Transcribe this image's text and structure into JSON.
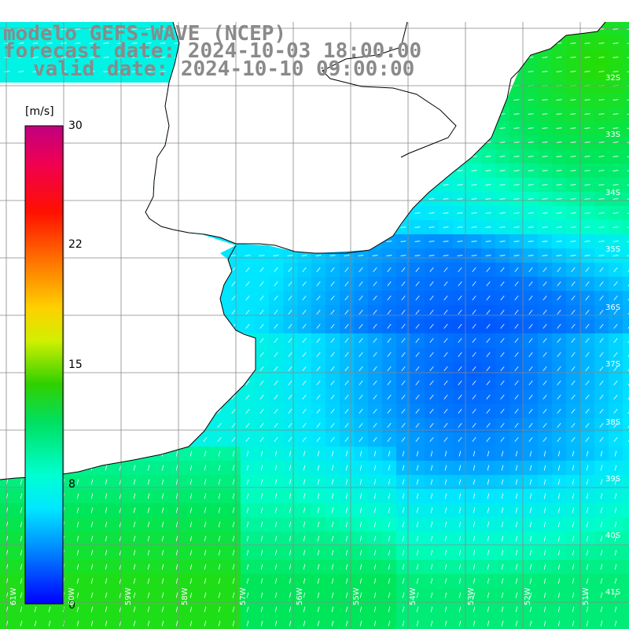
{
  "titles": {
    "line1": "modelo GEFS-WAVE (NCEP)",
    "line2": "forecast date: 2024-10-03 18:00:00",
    "line3": "valid date: 2024-10-10 09:00:00"
  },
  "colorbar": {
    "unit": "[m/s]",
    "ticks": [
      "30",
      "22",
      "15",
      "8",
      "0"
    ],
    "colors": [
      "#0000ff",
      "#00a0ff",
      "#00ffff",
      "#00ff40",
      "#40ff00",
      "#ffff00",
      "#ff8000",
      "#ff0000",
      "#ff0080",
      "#c00080"
    ]
  },
  "lat_labels": [
    "32S",
    "33S",
    "34S",
    "35S",
    "36S",
    "37S",
    "38S",
    "39S",
    "40S",
    "41S"
  ],
  "lon_labels": [
    "61W",
    "60W",
    "59W",
    "58W",
    "57W",
    "56W",
    "55W",
    "54W",
    "53W",
    "52W",
    "51W"
  ],
  "field_colors": {
    "land": "#ffffff",
    "grid": "#888888",
    "coast": "#000000",
    "arrow": "#ffffff"
  }
}
